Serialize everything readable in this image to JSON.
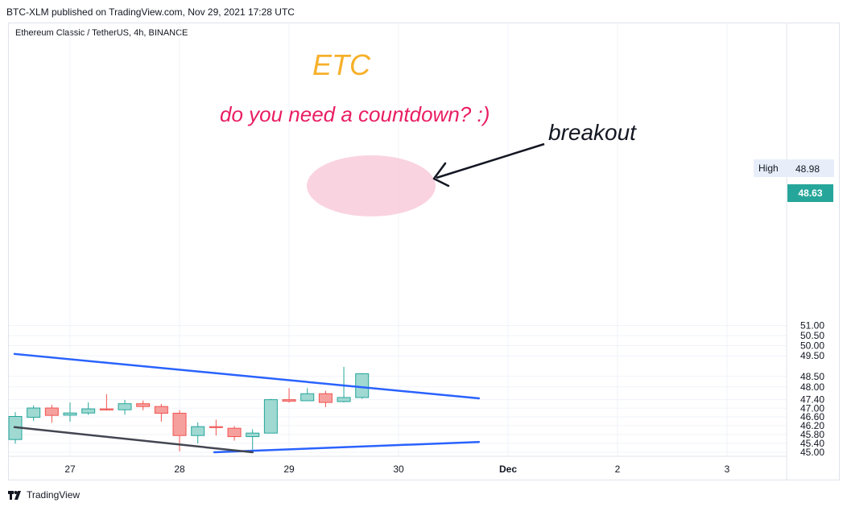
{
  "header": {
    "attribution": "BTC-XLM published on TradingView.com, Nov 29, 2021 17:28 UTC",
    "symbol": "Ethereum Classic / TetherUS, 4h, BINANCE"
  },
  "footer": {
    "brand": "TradingView"
  },
  "annotations": {
    "title": "ETC",
    "question": "do you need a countdown?  :)",
    "breakout": "breakout"
  },
  "price_labels": {
    "high_label": "High",
    "high_value": "48.98",
    "last_value": "48.63"
  },
  "colors": {
    "up": "#26a69a",
    "down": "#ef5350",
    "trendline": "#2962ff",
    "support_line": "#434651",
    "highlight": "#f8bbd0"
  },
  "chart_data": {
    "type": "candlestick",
    "interval": "4h",
    "x_tick_labels": [
      "27",
      "28",
      "29",
      "30",
      "Dec",
      "2",
      "3"
    ],
    "y_tick_labels": [
      "51.00",
      "50.50",
      "50.00",
      "49.50",
      "48.50",
      "48.00",
      "47.40",
      "47.00",
      "46.60",
      "46.20",
      "45.80",
      "45.40",
      "45.00"
    ],
    "y_ticks": [
      51.0,
      50.5,
      50.0,
      49.5,
      48.5,
      48.0,
      47.4,
      47.0,
      46.6,
      46.2,
      45.8,
      45.4,
      45.0
    ],
    "ylim": [
      45.0,
      51.0
    ],
    "scale": "log",
    "candles": [
      {
        "o": 45.57,
        "h": 46.82,
        "l": 45.38,
        "c": 46.62
      },
      {
        "o": 46.58,
        "h": 47.13,
        "l": 46.42,
        "c": 47.01
      },
      {
        "o": 47.01,
        "h": 47.16,
        "l": 46.33,
        "c": 46.67
      },
      {
        "o": 46.68,
        "h": 47.27,
        "l": 46.38,
        "c": 46.78
      },
      {
        "o": 46.78,
        "h": 47.27,
        "l": 46.69,
        "c": 46.97
      },
      {
        "o": 46.97,
        "h": 47.66,
        "l": 46.89,
        "c": 46.92
      },
      {
        "o": 46.93,
        "h": 47.39,
        "l": 46.7,
        "c": 47.21
      },
      {
        "o": 47.21,
        "h": 47.36,
        "l": 46.91,
        "c": 47.08
      },
      {
        "o": 47.08,
        "h": 47.2,
        "l": 46.38,
        "c": 46.77
      },
      {
        "o": 46.77,
        "h": 46.91,
        "l": 45.04,
        "c": 45.75
      },
      {
        "o": 45.75,
        "h": 46.35,
        "l": 45.39,
        "c": 46.15
      },
      {
        "o": 46.15,
        "h": 46.47,
        "l": 45.75,
        "c": 46.11
      },
      {
        "o": 46.08,
        "h": 46.18,
        "l": 45.52,
        "c": 45.7
      },
      {
        "o": 45.7,
        "h": 46.03,
        "l": 45.0,
        "c": 45.86
      },
      {
        "o": 45.86,
        "h": 47.44,
        "l": 45.86,
        "c": 47.4
      },
      {
        "o": 47.4,
        "h": 47.94,
        "l": 47.26,
        "c": 47.33
      },
      {
        "o": 47.35,
        "h": 47.94,
        "l": 47.35,
        "c": 47.68
      },
      {
        "o": 47.68,
        "h": 47.82,
        "l": 47.05,
        "c": 47.27
      },
      {
        "o": 47.31,
        "h": 48.96,
        "l": 47.27,
        "c": 47.5
      },
      {
        "o": 47.5,
        "h": 48.66,
        "l": 47.44,
        "c": 48.63
      }
    ],
    "lines": [
      {
        "name": "upper-trendline",
        "x0": -0.0436,
        "p0": 49.59,
        "x1": 25.4,
        "p1": 47.46
      },
      {
        "name": "lower-trendline",
        "x0": 10.9,
        "p0": 45.0,
        "x1": 25.4,
        "p1": 45.46
      },
      {
        "name": "support-line",
        "x0": -0.0436,
        "p0": 46.13,
        "x1": 13.0,
        "p1": 45.0
      }
    ]
  }
}
